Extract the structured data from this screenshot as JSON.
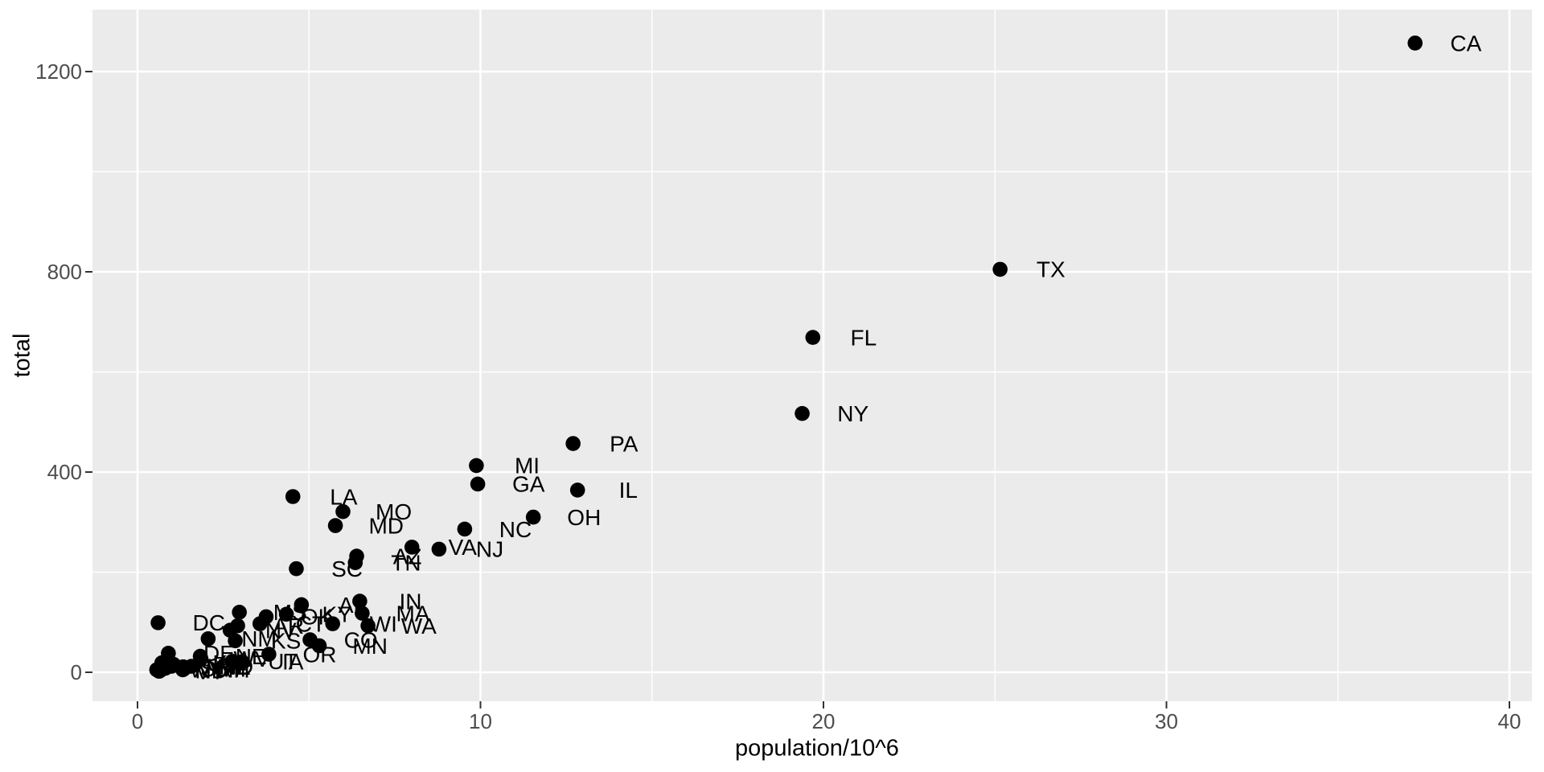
{
  "chart_data": {
    "type": "scatter",
    "title": "",
    "xlabel": "population/10^6",
    "ylabel": "total",
    "x_ticks": [
      0,
      10,
      20,
      30,
      40
    ],
    "x_minor_ticks": [
      5,
      15,
      25,
      35
    ],
    "y_ticks": [
      0,
      400,
      800,
      1200
    ],
    "y_minor_ticks": [
      200,
      600,
      1000
    ],
    "xlim": [
      -1.31,
      40.66
    ],
    "ylim": [
      -58,
      1324
    ],
    "grid": "major+minor",
    "legend": "none",
    "label_nudge_x": 1.48,
    "colors": {
      "panel_bg": "#EBEBEB",
      "grid": "#FFFFFF",
      "point": "#000000",
      "label": "#000000",
      "tick_label": "#4D4D4D",
      "tick_mark": "#333333",
      "axis_title": "#000000"
    },
    "points": [
      {
        "abb": "AL",
        "x": 4.78,
        "y": 135
      },
      {
        "abb": "AK",
        "x": 0.71,
        "y": 19
      },
      {
        "abb": "AZ",
        "x": 6.39,
        "y": 232
      },
      {
        "abb": "AR",
        "x": 2.92,
        "y": 93
      },
      {
        "abb": "CA",
        "x": 37.25,
        "y": 1257
      },
      {
        "abb": "CO",
        "x": 5.03,
        "y": 65
      },
      {
        "abb": "CT",
        "x": 3.57,
        "y": 97
      },
      {
        "abb": "DE",
        "x": 0.9,
        "y": 38
      },
      {
        "abb": "DC",
        "x": 0.6,
        "y": 99
      },
      {
        "abb": "FL",
        "x": 19.69,
        "y": 669
      },
      {
        "abb": "GA",
        "x": 9.92,
        "y": 376
      },
      {
        "abb": "HI",
        "x": 1.36,
        "y": 7
      },
      {
        "abb": "ID",
        "x": 1.57,
        "y": 12
      },
      {
        "abb": "IL",
        "x": 12.83,
        "y": 364
      },
      {
        "abb": "IN",
        "x": 6.48,
        "y": 142
      },
      {
        "abb": "IA",
        "x": 3.05,
        "y": 21
      },
      {
        "abb": "KS",
        "x": 2.85,
        "y": 63
      },
      {
        "abb": "KY",
        "x": 4.34,
        "y": 116
      },
      {
        "abb": "LA",
        "x": 4.53,
        "y": 351
      },
      {
        "abb": "ME",
        "x": 1.33,
        "y": 11
      },
      {
        "abb": "MD",
        "x": 5.77,
        "y": 293
      },
      {
        "abb": "MA",
        "x": 6.55,
        "y": 118
      },
      {
        "abb": "MI",
        "x": 9.88,
        "y": 413
      },
      {
        "abb": "MN",
        "x": 5.3,
        "y": 53
      },
      {
        "abb": "MS",
        "x": 2.97,
        "y": 120
      },
      {
        "abb": "MO",
        "x": 5.99,
        "y": 321
      },
      {
        "abb": "MT",
        "x": 0.99,
        "y": 12
      },
      {
        "abb": "NE",
        "x": 1.83,
        "y": 32
      },
      {
        "abb": "NV",
        "x": 2.7,
        "y": 84
      },
      {
        "abb": "NH",
        "x": 1.32,
        "y": 5
      },
      {
        "abb": "NJ",
        "x": 8.79,
        "y": 246
      },
      {
        "abb": "NM",
        "x": 2.06,
        "y": 67
      },
      {
        "abb": "NY",
        "x": 19.38,
        "y": 517
      },
      {
        "abb": "NC",
        "x": 9.54,
        "y": 286
      },
      {
        "abb": "ND",
        "x": 0.67,
        "y": 4
      },
      {
        "abb": "OH",
        "x": 11.54,
        "y": 310
      },
      {
        "abb": "OK",
        "x": 3.75,
        "y": 111
      },
      {
        "abb": "OR",
        "x": 3.83,
        "y": 36
      },
      {
        "abb": "PA",
        "x": 12.7,
        "y": 457
      },
      {
        "abb": "RI",
        "x": 1.05,
        "y": 16
      },
      {
        "abb": "SC",
        "x": 4.63,
        "y": 207
      },
      {
        "abb": "SD",
        "x": 0.81,
        "y": 8
      },
      {
        "abb": "TN",
        "x": 6.35,
        "y": 219
      },
      {
        "abb": "TX",
        "x": 25.15,
        "y": 805
      },
      {
        "abb": "UT",
        "x": 2.76,
        "y": 22
      },
      {
        "abb": "VT",
        "x": 0.63,
        "y": 2
      },
      {
        "abb": "VA",
        "x": 8.0,
        "y": 250
      },
      {
        "abb": "WA",
        "x": 6.72,
        "y": 93
      },
      {
        "abb": "WV",
        "x": 1.85,
        "y": 27
      },
      {
        "abb": "WI",
        "x": 5.69,
        "y": 97
      },
      {
        "abb": "WY",
        "x": 0.56,
        "y": 5
      }
    ]
  }
}
